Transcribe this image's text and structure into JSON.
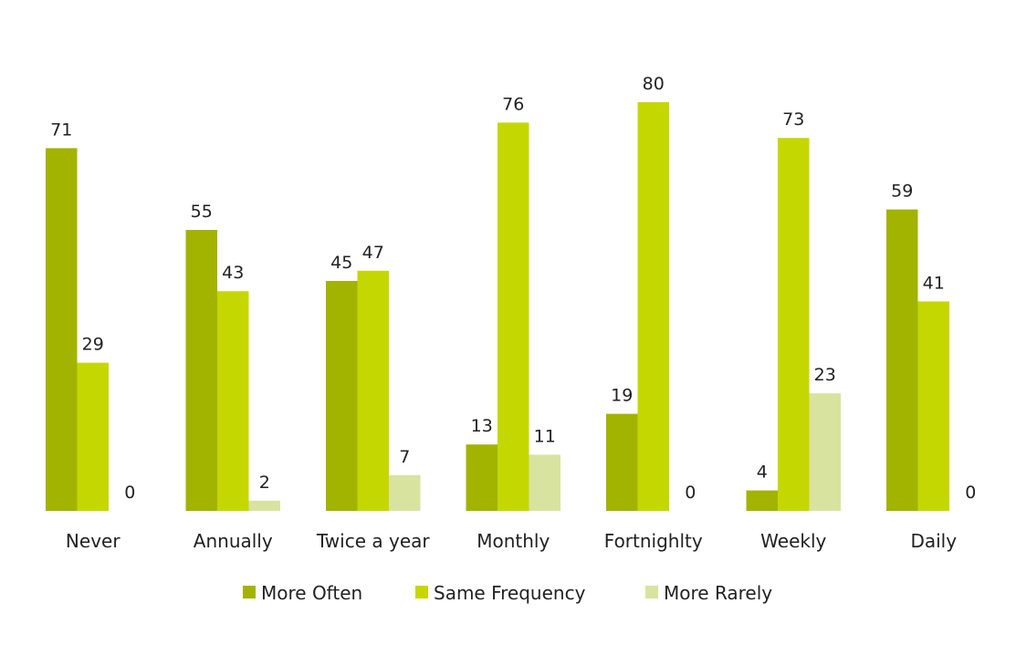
{
  "chart_data": {
    "type": "bar",
    "title": "",
    "xlabel": "",
    "ylabel": "",
    "ylim": [
      0,
      85
    ],
    "grid": false,
    "legend_position": "bottom",
    "categories": [
      "Never",
      "Annually",
      "Twice a year",
      "Monthly",
      "Fortnighlty",
      "Weekly",
      "Daily"
    ],
    "series": [
      {
        "name": "More Often",
        "color": "#a2b400",
        "values": [
          71,
          55,
          45,
          13,
          19,
          4,
          59
        ]
      },
      {
        "name": "Same Frequency",
        "color": "#c4d800",
        "values": [
          29,
          43,
          47,
          76,
          80,
          73,
          41
        ]
      },
      {
        "name": "More Rarely",
        "color": "#d8e3a0",
        "values": [
          0,
          2,
          7,
          11,
          0,
          23,
          0
        ]
      }
    ]
  }
}
